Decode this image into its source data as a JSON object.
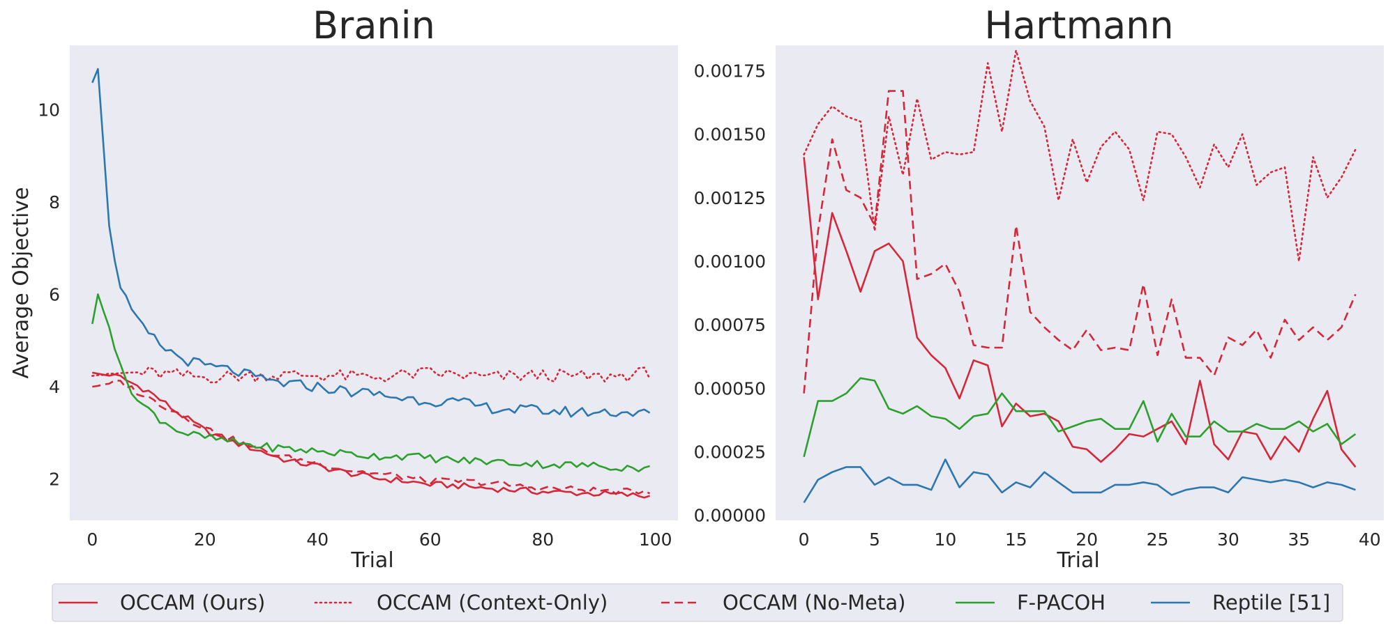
{
  "chart_data": [
    {
      "type": "line",
      "title": "Branin",
      "xlabel": "Trial",
      "ylabel": "Average Objective",
      "xlim": [
        -4,
        104
      ],
      "ylim": [
        1.1,
        11.4
      ],
      "xticks": [
        0,
        20,
        40,
        60,
        80,
        100
      ],
      "xtick_labels": [
        "0",
        "20",
        "40",
        "60",
        "80",
        "100"
      ],
      "yticks": [
        2,
        4,
        6,
        8,
        10
      ],
      "ytick_labels": [
        "2",
        "4",
        "6",
        "8",
        "10"
      ],
      "grid": false,
      "series": [
        {
          "name": "OCCAM (Ours)",
          "anchors": [
            [
              0,
              4.3
            ],
            [
              5,
              4.2
            ],
            [
              10,
              3.9
            ],
            [
              15,
              3.45
            ],
            [
              20,
              3.05
            ],
            [
              25,
              2.8
            ],
            [
              30,
              2.6
            ],
            [
              35,
              2.38
            ],
            [
              40,
              2.28
            ],
            [
              45,
              2.14
            ],
            [
              50,
              2.02
            ],
            [
              55,
              1.96
            ],
            [
              60,
              1.88
            ],
            [
              65,
              1.85
            ],
            [
              70,
              1.8
            ],
            [
              75,
              1.76
            ],
            [
              80,
              1.72
            ],
            [
              85,
              1.7
            ],
            [
              90,
              1.68
            ],
            [
              95,
              1.65
            ],
            [
              99,
              1.62
            ]
          ]
        },
        {
          "name": "OCCAM (Context-Only)",
          "anchors": [
            [
              0,
              4.25
            ],
            [
              10,
              4.3
            ],
            [
              20,
              4.2
            ],
            [
              30,
              4.25
            ],
            [
              40,
              4.25
            ],
            [
              50,
              4.2
            ],
            [
              60,
              4.3
            ],
            [
              70,
              4.2
            ],
            [
              80,
              4.25
            ],
            [
              90,
              4.2
            ],
            [
              99,
              4.3
            ]
          ]
        },
        {
          "name": "OCCAM (No-Meta)",
          "anchors": [
            [
              0,
              4.0
            ],
            [
              5,
              4.1
            ],
            [
              10,
              3.75
            ],
            [
              15,
              3.45
            ],
            [
              20,
              3.1
            ],
            [
              25,
              2.85
            ],
            [
              30,
              2.62
            ],
            [
              35,
              2.45
            ],
            [
              40,
              2.35
            ],
            [
              45,
              2.2
            ],
            [
              50,
              2.12
            ],
            [
              55,
              2.05
            ],
            [
              60,
              1.95
            ],
            [
              65,
              1.95
            ],
            [
              70,
              1.92
            ],
            [
              75,
              1.85
            ],
            [
              80,
              1.8
            ],
            [
              85,
              1.78
            ],
            [
              90,
              1.75
            ],
            [
              95,
              1.72
            ],
            [
              99,
              1.75
            ]
          ]
        },
        {
          "name": "F-PACOH",
          "anchors": [
            [
              0,
              5.35
            ],
            [
              1,
              6.0
            ],
            [
              3,
              5.3
            ],
            [
              5,
              4.4
            ],
            [
              8,
              3.7
            ],
            [
              12,
              3.3
            ],
            [
              16,
              3.0
            ],
            [
              20,
              2.9
            ],
            [
              25,
              2.8
            ],
            [
              30,
              2.7
            ],
            [
              35,
              2.65
            ],
            [
              40,
              2.6
            ],
            [
              45,
              2.55
            ],
            [
              50,
              2.5
            ],
            [
              55,
              2.5
            ],
            [
              60,
              2.45
            ],
            [
              65,
              2.4
            ],
            [
              70,
              2.38
            ],
            [
              75,
              2.35
            ],
            [
              80,
              2.32
            ],
            [
              85,
              2.3
            ],
            [
              90,
              2.28
            ],
            [
              95,
              2.25
            ],
            [
              99,
              2.22
            ]
          ]
        },
        {
          "name": "Reptile [51]",
          "anchors": [
            [
              0,
              10.6
            ],
            [
              1,
              10.9
            ],
            [
              2,
              9.2
            ],
            [
              3,
              7.5
            ],
            [
              5,
              6.1
            ],
            [
              8,
              5.4
            ],
            [
              12,
              4.9
            ],
            [
              16,
              4.6
            ],
            [
              20,
              4.45
            ],
            [
              25,
              4.35
            ],
            [
              30,
              4.15
            ],
            [
              35,
              4.05
            ],
            [
              40,
              4.0
            ],
            [
              45,
              3.9
            ],
            [
              50,
              3.85
            ],
            [
              55,
              3.75
            ],
            [
              60,
              3.7
            ],
            [
              65,
              3.65
            ],
            [
              70,
              3.55
            ],
            [
              75,
              3.5
            ],
            [
              80,
              3.48
            ],
            [
              85,
              3.45
            ],
            [
              90,
              3.45
            ],
            [
              95,
              3.45
            ],
            [
              99,
              3.4
            ]
          ]
        }
      ]
    },
    {
      "type": "line",
      "title": "Hartmann",
      "xlabel": "Trial",
      "ylabel": "",
      "xlim": [
        -2,
        41
      ],
      "ylim": [
        -2e-05,
        0.00185
      ],
      "xticks": [
        0,
        5,
        10,
        15,
        20,
        25,
        30,
        35,
        40
      ],
      "xtick_labels": [
        "0",
        "5",
        "10",
        "15",
        "20",
        "25",
        "30",
        "35",
        "40"
      ],
      "yticks": [
        0,
        0.00025,
        0.0005,
        0.00075,
        0.001,
        0.00125,
        0.0015,
        0.00175
      ],
      "ytick_labels": [
        "0.00000",
        "0.00025",
        "0.00050",
        "0.00075",
        "0.00100",
        "0.00125",
        "0.00150",
        "0.00175"
      ],
      "grid": false,
      "series": [
        {
          "name": "OCCAM (Ours)",
          "x": [
            0,
            1,
            2,
            3,
            4,
            5,
            6,
            7,
            8,
            9,
            10,
            11,
            12,
            13,
            14,
            15,
            16,
            17,
            18,
            19,
            20,
            21,
            22,
            23,
            24,
            25,
            26,
            27,
            28,
            29,
            30,
            31,
            32,
            33,
            34,
            35,
            36,
            37,
            38,
            39
          ],
          "y": [
            0.00141,
            0.00085,
            0.00119,
            0.00104,
            0.00088,
            0.00104,
            0.00107,
            0.001,
            0.0007,
            0.00063,
            0.00058,
            0.00046,
            0.00061,
            0.00059,
            0.00035,
            0.00044,
            0.00039,
            0.0004,
            0.00037,
            0.00027,
            0.00026,
            0.00021,
            0.00026,
            0.00032,
            0.00031,
            0.00034,
            0.00037,
            0.00028,
            0.00053,
            0.00028,
            0.00022,
            0.00033,
            0.00032,
            0.00022,
            0.00031,
            0.00025,
            0.00038,
            0.00049,
            0.00026,
            0.00019
          ]
        },
        {
          "name": "OCCAM (Context-Only)",
          "x": [
            0,
            1,
            2,
            3,
            4,
            5,
            6,
            7,
            8,
            9,
            10,
            11,
            12,
            13,
            14,
            15,
            16,
            17,
            18,
            19,
            20,
            21,
            22,
            23,
            24,
            25,
            26,
            27,
            28,
            29,
            30,
            31,
            32,
            33,
            34,
            35,
            36,
            37,
            38,
            39
          ],
          "y": [
            0.00142,
            0.00154,
            0.00161,
            0.00157,
            0.00155,
            0.00112,
            0.00157,
            0.00134,
            0.00164,
            0.0014,
            0.00143,
            0.00142,
            0.00143,
            0.00178,
            0.00151,
            0.00183,
            0.00163,
            0.00153,
            0.00124,
            0.00148,
            0.00131,
            0.00145,
            0.00151,
            0.00144,
            0.00124,
            0.00151,
            0.0015,
            0.00141,
            0.00129,
            0.00146,
            0.00137,
            0.0015,
            0.0013,
            0.00135,
            0.00137,
            0.001,
            0.00141,
            0.00125,
            0.00133,
            0.00144
          ]
        },
        {
          "name": "OCCAM (No-Meta)",
          "x": [
            0,
            1,
            2,
            3,
            4,
            5,
            6,
            7,
            8,
            9,
            10,
            11,
            12,
            13,
            14,
            15,
            16,
            17,
            18,
            19,
            20,
            21,
            22,
            23,
            24,
            25,
            26,
            27,
            28,
            29,
            30,
            31,
            32,
            33,
            34,
            35,
            36,
            37,
            38,
            39
          ],
          "y": [
            0.00048,
            0.00112,
            0.00148,
            0.00128,
            0.00125,
            0.00114,
            0.00167,
            0.00167,
            0.00093,
            0.00095,
            0.00099,
            0.00088,
            0.00067,
            0.00066,
            0.00066,
            0.00114,
            0.0008,
            0.00074,
            0.00069,
            0.00065,
            0.00073,
            0.00065,
            0.00066,
            0.00065,
            0.00091,
            0.00063,
            0.00085,
            0.00062,
            0.00062,
            0.00055,
            0.0007,
            0.00067,
            0.00073,
            0.00062,
            0.00077,
            0.00069,
            0.00074,
            0.00069,
            0.00074,
            0.00087
          ]
        },
        {
          "name": "F-PACOH",
          "x": [
            0,
            1,
            2,
            3,
            4,
            5,
            6,
            7,
            8,
            9,
            10,
            11,
            12,
            13,
            14,
            15,
            16,
            17,
            18,
            19,
            20,
            21,
            22,
            23,
            24,
            25,
            26,
            27,
            28,
            29,
            30,
            31,
            32,
            33,
            34,
            35,
            36,
            37,
            38,
            39
          ],
          "y": [
            0.00023,
            0.00045,
            0.00045,
            0.00048,
            0.00054,
            0.00053,
            0.00042,
            0.0004,
            0.00043,
            0.00039,
            0.00038,
            0.00034,
            0.00039,
            0.0004,
            0.00048,
            0.00041,
            0.00041,
            0.00041,
            0.00033,
            0.00035,
            0.00037,
            0.00038,
            0.00034,
            0.00034,
            0.00045,
            0.00029,
            0.0004,
            0.00031,
            0.00031,
            0.00037,
            0.00033,
            0.00033,
            0.00036,
            0.00034,
            0.00034,
            0.00037,
            0.00033,
            0.00036,
            0.00028,
            0.00032
          ]
        },
        {
          "name": "Reptile [51]",
          "x": [
            0,
            1,
            2,
            3,
            4,
            5,
            6,
            7,
            8,
            9,
            10,
            11,
            12,
            13,
            14,
            15,
            16,
            17,
            18,
            19,
            20,
            21,
            22,
            23,
            24,
            25,
            26,
            27,
            28,
            29,
            30,
            31,
            32,
            33,
            34,
            35,
            36,
            37,
            38,
            39
          ],
          "y": [
            5e-05,
            0.00014,
            0.00017,
            0.00019,
            0.00019,
            0.00012,
            0.00015,
            0.00012,
            0.00012,
            0.0001,
            0.00022,
            0.00011,
            0.00017,
            0.00016,
            9e-05,
            0.00013,
            0.00011,
            0.00017,
            0.00013,
            9e-05,
            9e-05,
            9e-05,
            0.00012,
            0.00012,
            0.00013,
            0.00012,
            8e-05,
            0.0001,
            0.00011,
            0.00011,
            9e-05,
            0.00015,
            0.00014,
            0.00013,
            0.00014,
            0.00013,
            0.00011,
            0.00013,
            0.00012,
            0.0001
          ]
        }
      ]
    }
  ],
  "legend": {
    "placement": "bottom-center",
    "items": [
      {
        "label": "OCCAM (Ours)",
        "color": "#d62739",
        "dash": "solid"
      },
      {
        "label": "OCCAM (Context-Only)",
        "color": "#d62739",
        "dash": "dotted"
      },
      {
        "label": "OCCAM (No-Meta)",
        "color": "#d62739",
        "dash": "dashed"
      },
      {
        "label": "F-PACOH",
        "color": "#2ca02c",
        "dash": "solid"
      },
      {
        "label": "Reptile [51]",
        "color": "#2c77b0",
        "dash": "solid"
      }
    ]
  },
  "colors": {
    "panel_bg": "#eaeaf2",
    "ours": "#d62739",
    "fpacoh": "#2ca02c",
    "reptile": "#2c77b0"
  }
}
